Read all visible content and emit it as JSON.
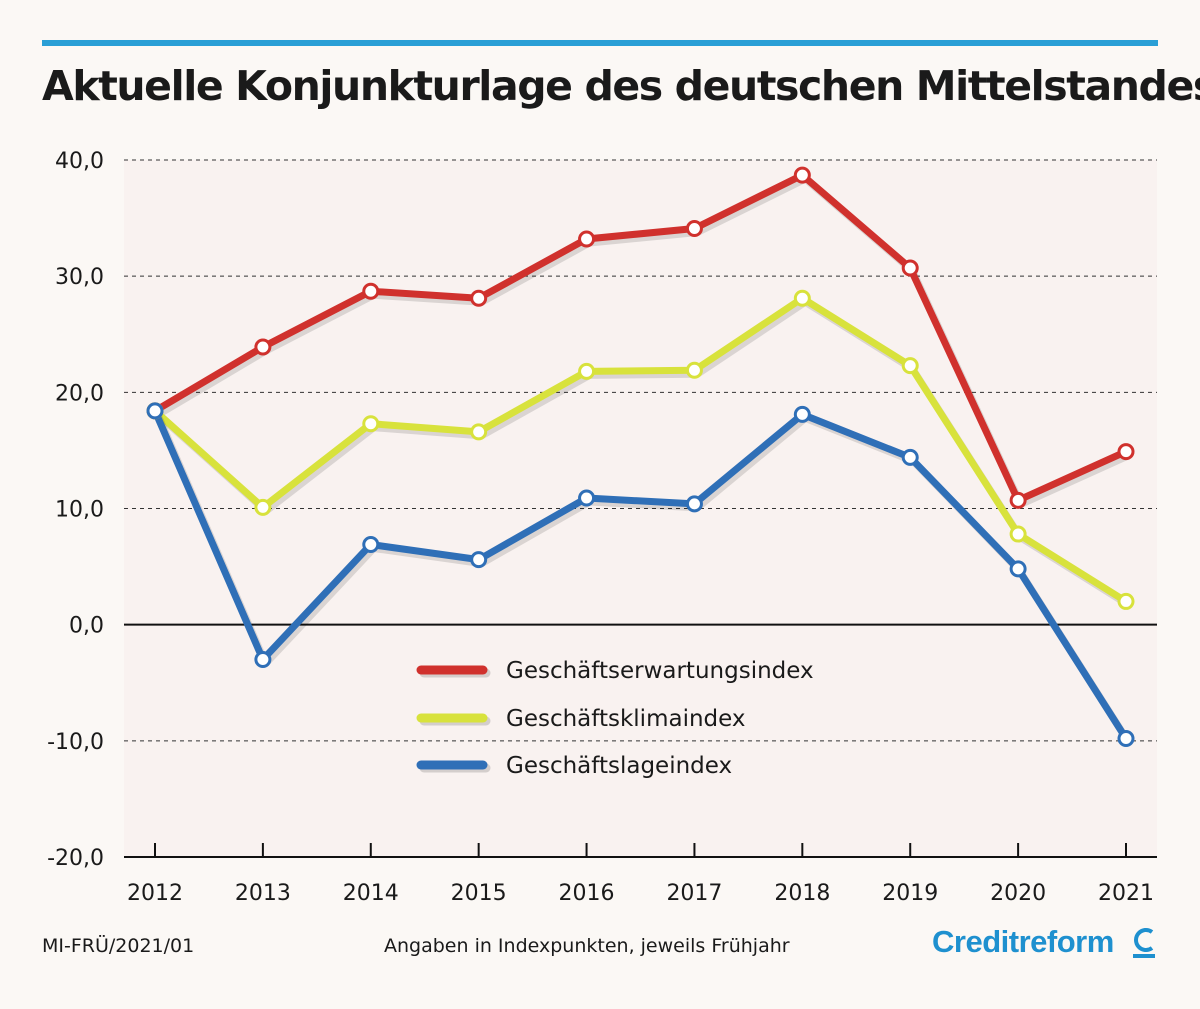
{
  "title": "Aktuelle Konjunkturlage des deutschen Mittelstandes",
  "footer": {
    "code": "MI-FRÜ/2021/01",
    "note": "Angaben in Indexpunkten, jeweils Frühjahr",
    "brand": "Creditreform"
  },
  "chart_data": {
    "type": "line",
    "title": "Aktuelle Konjunkturlage des deutschen Mittelstandes",
    "xlabel": "",
    "ylabel": "",
    "x": [
      "2012",
      "2013",
      "2014",
      "2015",
      "2016",
      "2017",
      "2018",
      "2019",
      "2020",
      "2021"
    ],
    "ylim": [
      -20,
      40
    ],
    "yticks": [
      -20,
      -10,
      0,
      10,
      20,
      30,
      40
    ],
    "ytick_labels": [
      "-20,0",
      "-10,0",
      "0,0",
      "10,0",
      "20,0",
      "30,0",
      "40,0"
    ],
    "grid": "horizontal dashed",
    "legend": "center-bottom",
    "series": [
      {
        "name": "Geschäftserwartungsindex",
        "color": "#d0312d",
        "values": [
          18.4,
          23.9,
          28.7,
          28.1,
          33.2,
          34.1,
          38.7,
          30.7,
          10.7,
          14.9
        ]
      },
      {
        "name": "Geschäftsklimaindex",
        "color": "#d8e23c",
        "values": [
          18.4,
          10.1,
          17.3,
          16.6,
          21.8,
          21.9,
          28.1,
          22.3,
          7.8,
          2.0
        ]
      },
      {
        "name": "Geschäftslageindex",
        "color": "#2f6fb7",
        "values": [
          18.4,
          -3.0,
          6.9,
          5.6,
          10.9,
          10.4,
          18.1,
          14.4,
          4.8,
          -9.8
        ]
      }
    ]
  }
}
